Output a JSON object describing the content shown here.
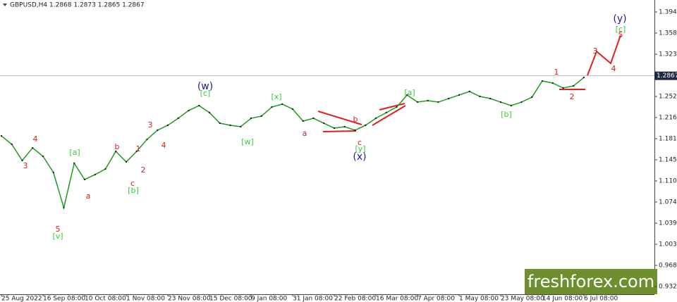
{
  "header": "GBPUSD,H4  1.2868 1.2873 1.2865 1.2867",
  "current_price": 1.2867,
  "watermark": "freshforex.com",
  "chart_data": {
    "type": "line",
    "color": "#1f9a1f",
    "categories": [
      "25 Aug 2022",
      null,
      null,
      null,
      "16 Sep 08:00",
      null,
      null,
      null,
      "10 Oct 08:00",
      null,
      null,
      null,
      "1 Nov 08:00",
      null,
      null,
      null,
      "23 Nov 08:00",
      null,
      null,
      null,
      "15 Dec 08:00",
      null,
      null,
      null,
      "9 Jan 08:00",
      null,
      null,
      null,
      "31 Jan 08:00",
      null,
      null,
      null,
      "22 Feb 08:00",
      null,
      null,
      null,
      "16 Mar 08:00",
      null,
      null,
      null,
      "7 Apr 08:00",
      null,
      null,
      null,
      "1 May 08:00",
      null,
      null,
      null,
      "23 May 08:00",
      null,
      null,
      null,
      "14 Jun 08:00",
      null,
      null,
      null,
      "6 Jul 08:00"
    ],
    "values": [
      1.1857,
      1.1715,
      1.1443,
      1.1656,
      1.1514,
      1.1242,
      1.065,
      1.1396,
      1.1124,
      1.1206,
      1.1301,
      1.1597,
      1.1419,
      1.1597,
      1.1798,
      1.1952,
      1.2035,
      1.2153,
      1.2283,
      1.2366,
      1.2248,
      1.207,
      1.2035,
      1.2011,
      1.2153,
      1.2189,
      1.2342,
      1.239,
      1.2307,
      1.2106,
      1.2153,
      1.207,
      1.1987,
      1.2011,
      1.1952,
      1.2035,
      1.2153,
      1.2248,
      1.2342,
      1.2544,
      1.2425,
      1.2449,
      1.2425,
      1.2484,
      1.2544,
      1.2603,
      1.252,
      1.2484,
      1.2425,
      1.2366,
      1.2425,
      1.2508,
      1.278,
      1.2745,
      1.2662,
      1.2697,
      1.2839
    ],
    "ylim": [
      0.9195,
      1.4141
    ],
    "yticks": [
      {
        "value": 1.394,
        "label": "1.3940"
      },
      {
        "value": 1.3585,
        "label": "1.3585"
      },
      {
        "value": 1.323,
        "label": "1.3230"
      },
      {
        "value": 1.252,
        "label": "1.2520"
      },
      {
        "value": 1.2165,
        "label": "1.2165"
      },
      {
        "value": 1.181,
        "label": "1.1810"
      },
      {
        "value": 1.1455,
        "label": "1.1455"
      },
      {
        "value": 1.11,
        "label": "1.1100"
      },
      {
        "value": 1.0745,
        "label": "1.0745"
      },
      {
        "value": 1.039,
        "label": "1.0390"
      },
      {
        "value": 1.0035,
        "label": "1.0035"
      },
      {
        "value": 0.968,
        "label": "0.9680"
      },
      {
        "value": 0.9325,
        "label": "0.9325"
      }
    ],
    "annotations": [
      {
        "text": "4",
        "color": "#d62020"
      },
      {
        "text": "3",
        "color": "#d62020"
      },
      {
        "text": "[a]",
        "color": "#33cc33"
      },
      {
        "text": "a",
        "color": "#d62020"
      },
      {
        "text": "5",
        "color": "#d62020"
      },
      {
        "text": "[v]",
        "color": "#33cc33"
      },
      {
        "text": "b",
        "color": "#d62020"
      },
      {
        "text": "1",
        "color": "#d62020"
      },
      {
        "text": "c",
        "color": "#d62020"
      },
      {
        "text": "[b]",
        "color": "#33cc33"
      },
      {
        "text": "2",
        "color": "#d62020"
      },
      {
        "text": "3",
        "color": "#d62020"
      },
      {
        "text": "4",
        "color": "#d62020"
      },
      {
        "text": "(w)",
        "color": "#1a1aa6"
      },
      {
        "text": "[c]",
        "color": "#33cc33"
      },
      {
        "text": "[w]",
        "color": "#33cc33"
      },
      {
        "text": "[x]",
        "color": "#33cc33"
      },
      {
        "text": "a",
        "color": "#d62020"
      },
      {
        "text": "b",
        "color": "#d62020"
      },
      {
        "text": "c",
        "color": "#d62020"
      },
      {
        "text": "[y]",
        "color": "#33cc33"
      },
      {
        "text": "(x)",
        "color": "#1a1aa6"
      },
      {
        "text": "[a]",
        "color": "#33cc33"
      },
      {
        "text": "[b]",
        "color": "#33cc33"
      },
      {
        "text": "1",
        "color": "#d62020"
      },
      {
        "text": "2",
        "color": "#d62020"
      },
      {
        "text": "3",
        "color": "#d62020"
      },
      {
        "text": "4",
        "color": "#d62020"
      },
      {
        "text": "5",
        "color": "#d62020"
      },
      {
        "text": "[c]",
        "color": "#33cc33"
      },
      {
        "text": "(y)",
        "color": "#1a1aa6"
      }
    ]
  }
}
